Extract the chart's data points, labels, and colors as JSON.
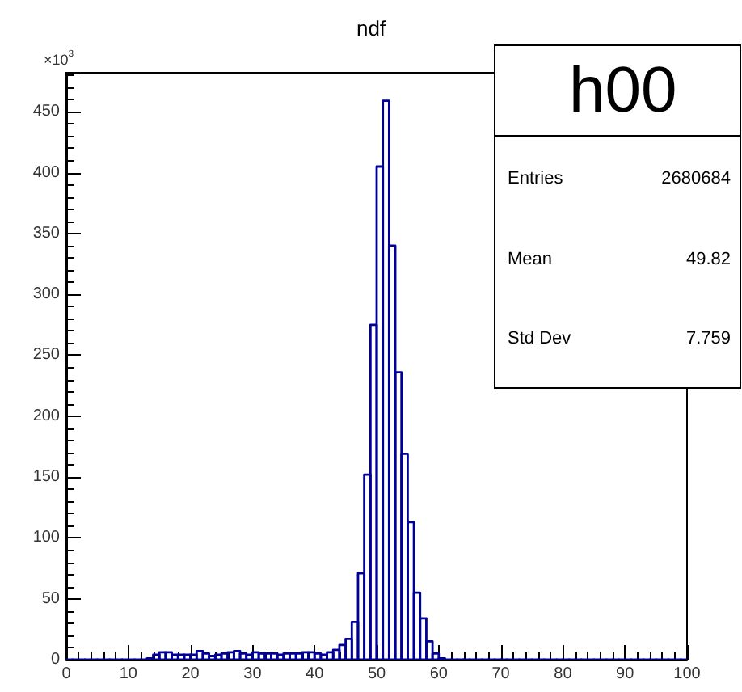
{
  "chart_data": {
    "type": "histogram",
    "title": "ndf",
    "ylabel": "×10$^{3}$",
    "bins": [
      0,
      1,
      2,
      3,
      4,
      5,
      6,
      7,
      8,
      9,
      10,
      11,
      12,
      13,
      14,
      15,
      16,
      17,
      18,
      19,
      20,
      21,
      22,
      23,
      24,
      25,
      26,
      27,
      28,
      29,
      30,
      31,
      32,
      33,
      34,
      35,
      36,
      37,
      38,
      39,
      40,
      41,
      42,
      43,
      44,
      45,
      46,
      47,
      48,
      49,
      50,
      51,
      52,
      53,
      54,
      55,
      56,
      57,
      58,
      59,
      60,
      61,
      62,
      63,
      64,
      65,
      66,
      67,
      68,
      69,
      70,
      71,
      72,
      73,
      74,
      75,
      76,
      77,
      78,
      79,
      80,
      81,
      82,
      83,
      84,
      85,
      86,
      87,
      88,
      89,
      90,
      91,
      92,
      93,
      94,
      95,
      96,
      97,
      98,
      99,
      100
    ],
    "values": [
      0,
      0,
      0,
      0,
      0,
      0,
      0,
      0,
      0,
      0,
      0,
      0,
      0,
      1,
      4,
      6,
      6,
      4,
      4,
      4,
      4,
      7,
      5,
      3,
      4,
      5,
      6,
      7,
      5,
      4,
      6,
      5,
      5,
      5,
      4,
      5,
      5,
      5,
      6,
      6,
      5,
      4,
      6,
      8,
      12,
      17,
      31,
      71,
      152,
      275,
      405,
      459,
      340,
      236,
      169,
      113,
      55,
      34,
      15,
      5,
      1,
      0,
      0,
      0,
      0,
      0,
      0,
      0,
      0,
      0,
      0,
      0,
      0,
      0,
      0,
      0,
      0,
      0,
      0,
      0,
      0,
      0,
      0,
      0,
      0,
      0,
      0,
      0,
      0,
      0,
      0,
      0,
      0,
      0,
      0,
      0,
      0,
      0,
      0,
      0
    ],
    "color": "#000099",
    "xlim": [
      0,
      100
    ],
    "xticks": [
      0,
      10,
      20,
      30,
      40,
      50,
      60,
      70,
      80,
      90,
      100
    ],
    "ylim": [
      0,
      482
    ],
    "yticks": [
      0,
      50,
      100,
      150,
      200,
      250,
      300,
      350,
      400,
      450
    ],
    "grid": false,
    "annotations": [
      "h00",
      "Entries",
      "2680684",
      "Mean",
      "49.82",
      "Std Dev",
      "7.759"
    ]
  }
}
